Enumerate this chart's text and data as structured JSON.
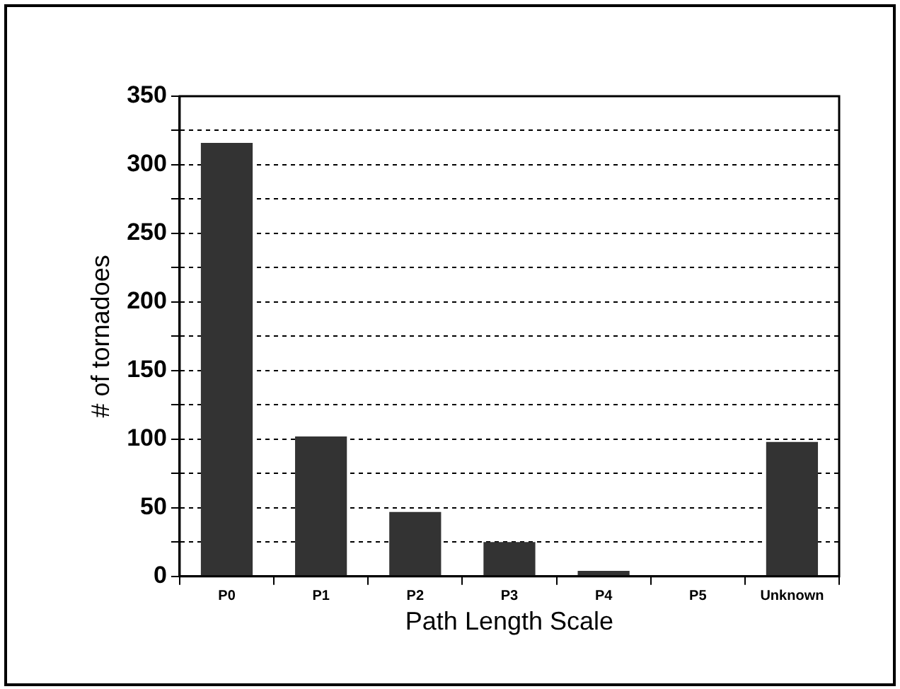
{
  "chart_data": {
    "type": "bar",
    "xlabel": "Path Length Scale",
    "ylabel": "# of tornadoes",
    "categories": [
      "P0",
      "P1",
      "P2",
      "P3",
      "P4",
      "P5",
      "Unknown"
    ],
    "values": [
      316,
      102,
      47,
      25,
      4,
      0,
      98
    ],
    "color": "#333333",
    "ylim": [
      0,
      350
    ],
    "yticks": [
      0,
      {
        "value": 25,
        "label": null
      },
      50,
      {
        "value": 75,
        "label": null
      },
      100,
      {
        "value": 125,
        "label": null
      },
      150,
      {
        "value": 175,
        "label": null
      },
      200,
      {
        "value": 225,
        "label": null
      },
      250,
      {
        "value": 275,
        "label": null
      },
      300,
      {
        "value": 325,
        "label": null
      },
      350
    ],
    "grid": "y",
    "legend": false
  }
}
